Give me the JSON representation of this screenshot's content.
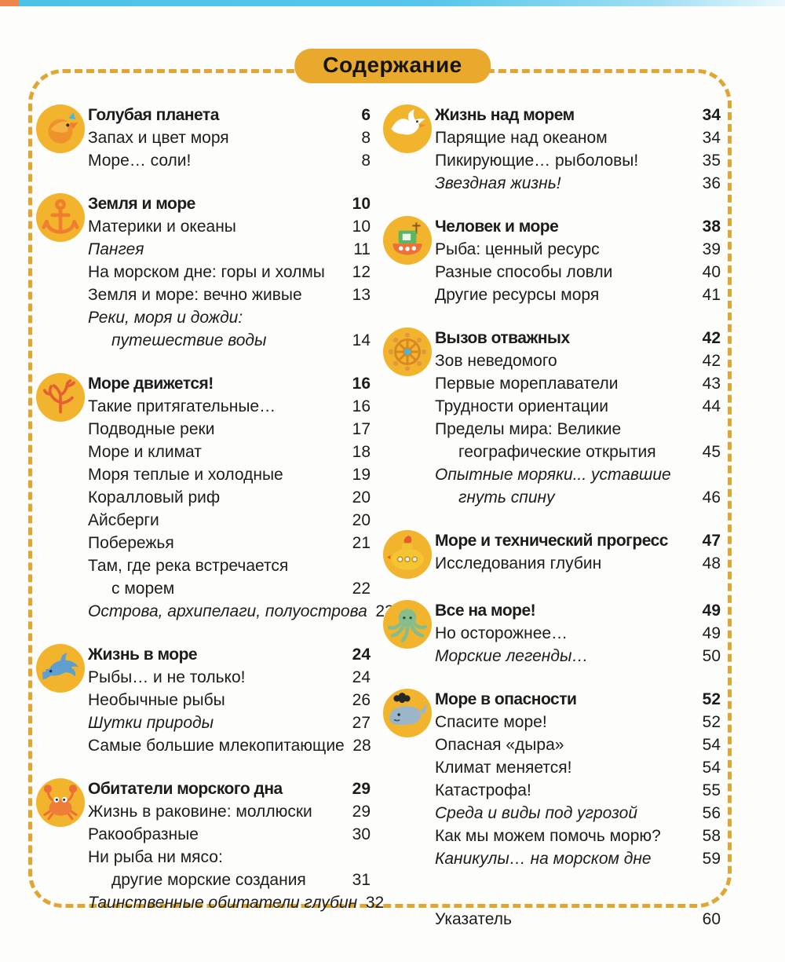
{
  "page": {
    "title": "Содержание"
  },
  "colors": {
    "accent_gold": "#dfa731",
    "badge": "#e9a92d",
    "icon_circle": "#f3b42d"
  },
  "columns": {
    "left": [
      {
        "icon": "fish-icon",
        "title": "Голубая планета",
        "page": "6",
        "items": [
          {
            "text": "Запах и цвет моря",
            "page": "8"
          },
          {
            "text": "Море… соли!",
            "page": "8"
          }
        ]
      },
      {
        "icon": "anchor-icon",
        "title": "Земля и море",
        "page": "10",
        "items": [
          {
            "text": "Материки и океаны",
            "page": "10"
          },
          {
            "text": "Пангея",
            "page": "11",
            "italic": true
          },
          {
            "text": "На морском дне: горы и холмы",
            "page": "12"
          },
          {
            "text": "Земля и море: вечно живые",
            "page": "13"
          },
          {
            "text": "Реки, моря и дожди:",
            "page": "",
            "italic": true
          },
          {
            "text": "путешествие воды",
            "page": "14",
            "italic": true,
            "indent": true
          }
        ]
      },
      {
        "icon": "coral-icon",
        "title": "Море движется!",
        "page": "16",
        "items": [
          {
            "text": "Такие притягательные…",
            "page": "16"
          },
          {
            "text": "Подводные реки",
            "page": "17"
          },
          {
            "text": "Море и климат",
            "page": "18"
          },
          {
            "text": "Моря теплые и холодные",
            "page": "19"
          },
          {
            "text": "Коралловый риф",
            "page": "20"
          },
          {
            "text": "Айсберги",
            "page": "20"
          },
          {
            "text": "Побережья",
            "page": "21"
          },
          {
            "text": "Там, где река встречается",
            "page": ""
          },
          {
            "text": "с морем",
            "page": "22",
            "indent": true
          },
          {
            "text": "Острова, архипелаги, полуострова",
            "page": "23",
            "italic": true
          }
        ]
      },
      {
        "icon": "dolphin-icon",
        "title": "Жизнь в море",
        "page": "24",
        "items": [
          {
            "text": "Рыбы… и не только!",
            "page": "24"
          },
          {
            "text": "Необычные рыбы",
            "page": "26"
          },
          {
            "text": "Шутки природы",
            "page": "27",
            "italic": true
          },
          {
            "text": "Самые большие млекопитающие",
            "page": "28"
          }
        ]
      },
      {
        "icon": "crab-icon",
        "title": "Обитатели морского дна",
        "page": "29",
        "items": [
          {
            "text": "Жизнь в раковине: моллюски",
            "page": "29"
          },
          {
            "text": "Ракообразные",
            "page": "30"
          },
          {
            "text": "Ни рыба ни мясо:",
            "page": ""
          },
          {
            "text": "другие морские создания",
            "page": "31",
            "indent": true
          },
          {
            "text": "Таинственные обитатели глубин",
            "page": "32",
            "italic": true
          }
        ]
      }
    ],
    "right": [
      {
        "icon": "seagull-icon",
        "title": "Жизнь над морем",
        "page": "34",
        "items": [
          {
            "text": "Парящие над океаном",
            "page": "34"
          },
          {
            "text": "Пикирующие… рыболовы!",
            "page": "35"
          },
          {
            "text": "Звездная жизнь!",
            "page": "36",
            "italic": true
          }
        ]
      },
      {
        "icon": "boat-icon",
        "title": "Человек и море",
        "page": "38",
        "items": [
          {
            "text": "Рыба: ценный ресурс",
            "page": "39"
          },
          {
            "text": "Разные способы ловли",
            "page": "40"
          },
          {
            "text": "Другие ресурсы моря",
            "page": "41"
          }
        ]
      },
      {
        "icon": "ship-wheel-icon",
        "title": "Вызов отважных",
        "page": "42",
        "items": [
          {
            "text": "Зов неведомого",
            "page": "42"
          },
          {
            "text": "Первые мореплаватели",
            "page": "43"
          },
          {
            "text": "Трудности ориентации",
            "page": "44"
          },
          {
            "text": "Пределы мира: Великие",
            "page": ""
          },
          {
            "text": "географические открытия",
            "page": "45",
            "indent": true
          },
          {
            "text": "Опытные моряки... уставшие",
            "page": "",
            "italic": true
          },
          {
            "text": "гнуть спину",
            "page": "46",
            "italic": true,
            "indent": true
          }
        ]
      },
      {
        "icon": "submarine-icon",
        "title": "Море и технический прогресс",
        "page": "47",
        "items": [
          {
            "text": "Исследования глубин",
            "page": "48"
          }
        ]
      },
      {
        "icon": "octopus-icon",
        "title": "Все на море!",
        "page": "49",
        "items": [
          {
            "text": "Но осторожнее…",
            "page": "49"
          },
          {
            "text": "Морские легенды…",
            "page": "50",
            "italic": true
          }
        ]
      },
      {
        "icon": "whale-icon",
        "title": "Море в опасности",
        "page": "52",
        "items": [
          {
            "text": "Спасите море!",
            "page": "52"
          },
          {
            "text": "Опасная «дыра»",
            "page": "54"
          },
          {
            "text": "Климат меняется!",
            "page": "54"
          },
          {
            "text": "Катастрофа!",
            "page": "55"
          },
          {
            "text": "Среда и виды под угрозой",
            "page": "56",
            "italic": true
          },
          {
            "text": "Как мы можем помочь морю?",
            "page": "58"
          },
          {
            "text": "Каникулы… на морском дне",
            "page": "59",
            "italic": true
          }
        ]
      },
      {
        "icon": null,
        "title": "Указатель",
        "page": "60",
        "plain": true,
        "items": []
      }
    ]
  }
}
